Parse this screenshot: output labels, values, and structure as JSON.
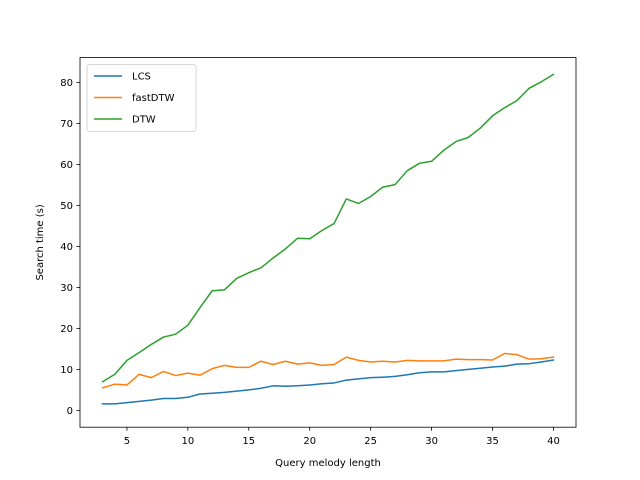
{
  "chart_data": {
    "type": "line",
    "xlabel": "Query melody length",
    "ylabel": "Search time (s)",
    "xlim": [
      1.15,
      41.85
    ],
    "ylim": [
      -4.1,
      86.1
    ],
    "xticks": [
      5,
      10,
      15,
      20,
      25,
      30,
      35,
      40
    ],
    "yticks": [
      0,
      10,
      20,
      30,
      40,
      50,
      60,
      70,
      80
    ],
    "grid": false,
    "legend_position": "top-left",
    "x": [
      3,
      4,
      5,
      6,
      7,
      8,
      9,
      10,
      11,
      12,
      13,
      14,
      15,
      16,
      17,
      18,
      19,
      20,
      21,
      22,
      23,
      24,
      25,
      26,
      27,
      28,
      29,
      30,
      31,
      32,
      33,
      34,
      35,
      36,
      37,
      38,
      39,
      40
    ],
    "series": [
      {
        "name": "LCS",
        "color": "#1f77b4",
        "values": [
          1.6,
          1.6,
          1.9,
          2.2,
          2.5,
          2.9,
          2.9,
          3.2,
          4.0,
          4.2,
          4.4,
          4.7,
          5.0,
          5.4,
          6.0,
          5.9,
          6.0,
          6.2,
          6.5,
          6.7,
          7.4,
          7.7,
          8.0,
          8.1,
          8.3,
          8.7,
          9.2,
          9.4,
          9.4,
          9.7,
          10.0,
          10.3,
          10.6,
          10.8,
          11.3,
          11.4,
          11.8,
          12.3
        ]
      },
      {
        "name": "fastDTW",
        "color": "#ff7f0e",
        "values": [
          5.5,
          6.4,
          6.2,
          8.8,
          8.0,
          9.5,
          8.5,
          9.1,
          8.6,
          10.2,
          11.0,
          10.5,
          10.5,
          12.0,
          11.2,
          12.0,
          11.3,
          11.6,
          11.0,
          11.2,
          13.0,
          12.2,
          11.8,
          12.0,
          11.8,
          12.2,
          12.1,
          12.1,
          12.1,
          12.5,
          12.4,
          12.4,
          12.3,
          13.9,
          13.6,
          12.5,
          12.6,
          13.0
        ]
      },
      {
        "name": "DTW",
        "color": "#2ca02c",
        "values": [
          7.0,
          8.8,
          12.2,
          14.1,
          16.1,
          17.9,
          18.6,
          20.8,
          25.1,
          29.2,
          29.4,
          32.2,
          33.6,
          34.8,
          37.2,
          39.4,
          42.0,
          41.9,
          43.9,
          45.6,
          51.6,
          50.5,
          52.2,
          54.5,
          55.1,
          58.5,
          60.3,
          60.8,
          63.5,
          65.6,
          66.6,
          68.9,
          71.9,
          73.9,
          75.6,
          78.6,
          80.2,
          82.0
        ]
      }
    ]
  }
}
